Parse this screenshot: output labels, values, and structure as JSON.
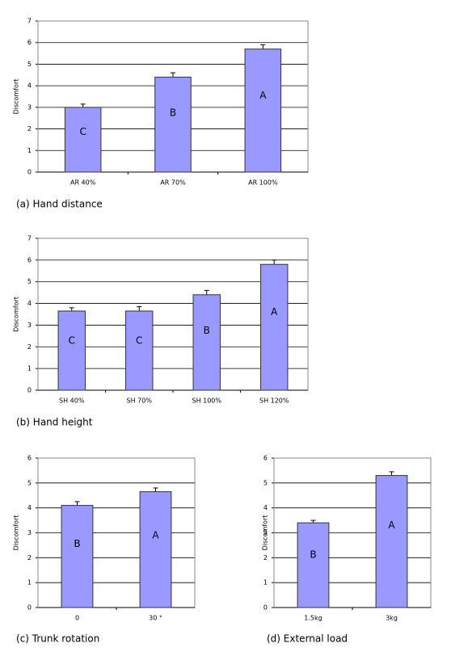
{
  "chart_data": [
    {
      "type": "bar",
      "title": "(a) Hand distance",
      "y_label": "Discomfort",
      "categories": [
        "AR 40%",
        "AR 70%",
        "AR 100%"
      ],
      "values": [
        3.0,
        4.4,
        5.7
      ],
      "errors": [
        0.15,
        0.2,
        0.2
      ],
      "annotations": [
        "C",
        "B",
        "A"
      ],
      "color": "#9999ff",
      "ylim": [
        0,
        7
      ],
      "yticks": [
        0,
        1,
        2,
        3,
        4,
        5,
        6,
        7
      ],
      "grid": true
    },
    {
      "type": "bar",
      "title": "(b) Hand height",
      "y_label": "Discomfort",
      "categories": [
        "SH 40%",
        "SH 70%",
        "SH 100%",
        "SH 120%"
      ],
      "values": [
        3.65,
        3.65,
        4.4,
        5.8
      ],
      "errors": [
        0.15,
        0.2,
        0.2,
        0.2
      ],
      "annotations": [
        "C",
        "C",
        "B",
        "A"
      ],
      "color": "#9999ff",
      "ylim": [
        0,
        7
      ],
      "yticks": [
        0,
        1,
        2,
        3,
        4,
        5,
        6,
        7
      ],
      "grid": true
    },
    {
      "type": "bar",
      "title": "(c) Trunk rotation",
      "y_label": "Discomfort",
      "categories": [
        "0",
        "30 °"
      ],
      "values": [
        4.1,
        4.65
      ],
      "errors": [
        0.15,
        0.15
      ],
      "annotations": [
        "B",
        "A"
      ],
      "color": "#9999ff",
      "ylim": [
        0,
        6
      ],
      "yticks": [
        0,
        1,
        2,
        3,
        4,
        5,
        6
      ],
      "grid": true
    },
    {
      "type": "bar",
      "title": "(d) External load",
      "y_label": "Discomfort",
      "categories": [
        "1.5kg",
        "3kg"
      ],
      "values": [
        3.4,
        5.3
      ],
      "errors": [
        0.1,
        0.15
      ],
      "annotations": [
        "B",
        "A"
      ],
      "color": "#9999ff",
      "ylim": [
        0,
        6
      ],
      "yticks": [
        0,
        1,
        2,
        3,
        4,
        5,
        6
      ],
      "grid": true
    }
  ]
}
